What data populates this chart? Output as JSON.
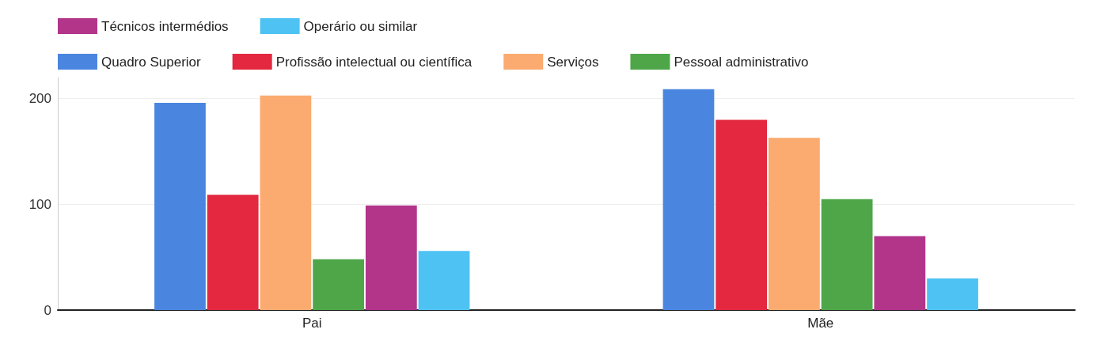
{
  "chart_data": {
    "type": "bar",
    "categories": [
      "Pai",
      "Mãe"
    ],
    "series": [
      {
        "name": "Quadro Superior",
        "color": "#4a86e0",
        "values": [
          196,
          209
        ]
      },
      {
        "name": "Profissão intelectual ou científica",
        "color": "#e3283f",
        "values": [
          109,
          180
        ]
      },
      {
        "name": "Serviços",
        "color": "#fbab6f",
        "values": [
          203,
          163
        ]
      },
      {
        "name": "Pessoal administrativo",
        "color": "#4ea648",
        "values": [
          48,
          105
        ]
      },
      {
        "name": "Técnicos intermédios",
        "color": "#b2358a",
        "values": [
          99,
          70
        ]
      },
      {
        "name": "Operário ou similar",
        "color": "#4ec3f3",
        "values": [
          56,
          30
        ]
      }
    ],
    "ylim": [
      0,
      220
    ],
    "yticks": [
      0,
      100,
      200
    ],
    "grid": "y",
    "legend": "top left"
  }
}
